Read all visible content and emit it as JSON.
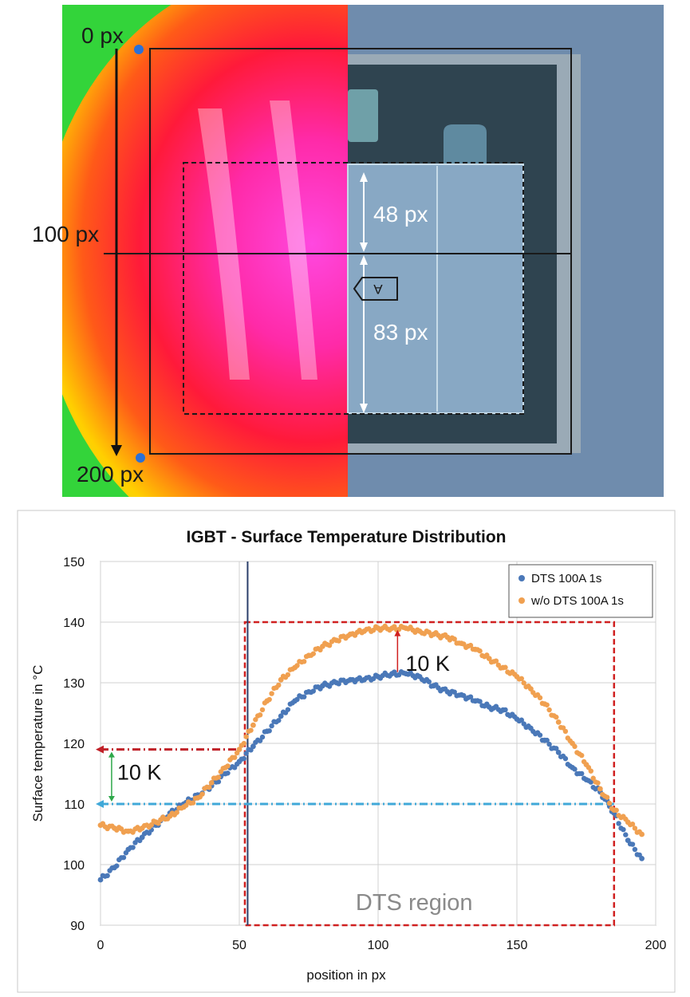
{
  "thermal_image": {
    "labels": {
      "top_px": "0 px",
      "mid_px": "100 px",
      "bottom_px": "200 px",
      "upper_span": "48 px",
      "lower_span": "83 px",
      "marker": "A"
    },
    "colors": {
      "hot": "#ff2aa8",
      "warm": "#ff2020",
      "mid": "#ffd000",
      "cool": "#33d43a",
      "package": "#6f8cad",
      "die": "#2f4450"
    }
  },
  "chart_data": {
    "type": "scatter",
    "title": "IGBT - Surface Temperature Distribution",
    "xlabel": "position in px",
    "ylabel": "Surface  temperature in °C",
    "xlim": [
      0,
      200
    ],
    "ylim": [
      90,
      150
    ],
    "x_ticks": [
      0,
      50,
      100,
      150,
      200
    ],
    "y_ticks": [
      90,
      100,
      110,
      120,
      130,
      140,
      150
    ],
    "grid": true,
    "legend_position": "top-right",
    "series": [
      {
        "name": "DTS 100A 1s",
        "color": "#4a78b8",
        "x": [
          0,
          5,
          10,
          15,
          20,
          25,
          30,
          35,
          40,
          45,
          50,
          55,
          60,
          65,
          70,
          75,
          80,
          85,
          90,
          95,
          100,
          105,
          110,
          115,
          120,
          125,
          130,
          135,
          140,
          145,
          150,
          155,
          160,
          165,
          170,
          175,
          180,
          185,
          190,
          195
        ],
        "y": [
          97.5,
          99.5,
          102.5,
          104.5,
          106.5,
          108.5,
          110,
          111.5,
          113,
          115,
          117,
          119.5,
          122,
          124.5,
          127,
          128.5,
          129.5,
          130,
          130.5,
          130.5,
          131,
          131.5,
          131.5,
          131,
          129.5,
          128.5,
          128,
          127,
          126,
          125.5,
          124,
          122.5,
          120.5,
          118.5,
          116,
          114,
          112,
          108.5,
          104,
          101
        ]
      },
      {
        "name": "w/o DTS 100A 1s",
        "color": "#f0a050",
        "x": [
          0,
          5,
          10,
          15,
          20,
          25,
          30,
          35,
          40,
          45,
          50,
          55,
          60,
          65,
          70,
          75,
          80,
          85,
          90,
          95,
          100,
          105,
          110,
          115,
          120,
          125,
          130,
          135,
          140,
          145,
          150,
          155,
          160,
          165,
          170,
          175,
          180,
          185,
          190,
          195
        ],
        "y": [
          106.5,
          106,
          105.5,
          106,
          107,
          108,
          109.5,
          111,
          113.5,
          116,
          119,
          123,
          127,
          130.5,
          132.5,
          134.5,
          136,
          137,
          138,
          138.5,
          139,
          139,
          139,
          138.5,
          138,
          137.5,
          136.5,
          135.5,
          134,
          132.5,
          131,
          129,
          126.5,
          123.5,
          120,
          116.5,
          112.5,
          109,
          107,
          105
        ]
      }
    ],
    "annotations": {
      "delta_max": "10 K",
      "delta_edge": "10 K",
      "region_label": "DTS region"
    },
    "reference_lines": {
      "upper_level": 119,
      "lower_level": 110,
      "vertical_at": 53,
      "region_x": [
        52,
        185
      ],
      "region_y": [
        90,
        140
      ],
      "max_delta_at": 107
    }
  }
}
